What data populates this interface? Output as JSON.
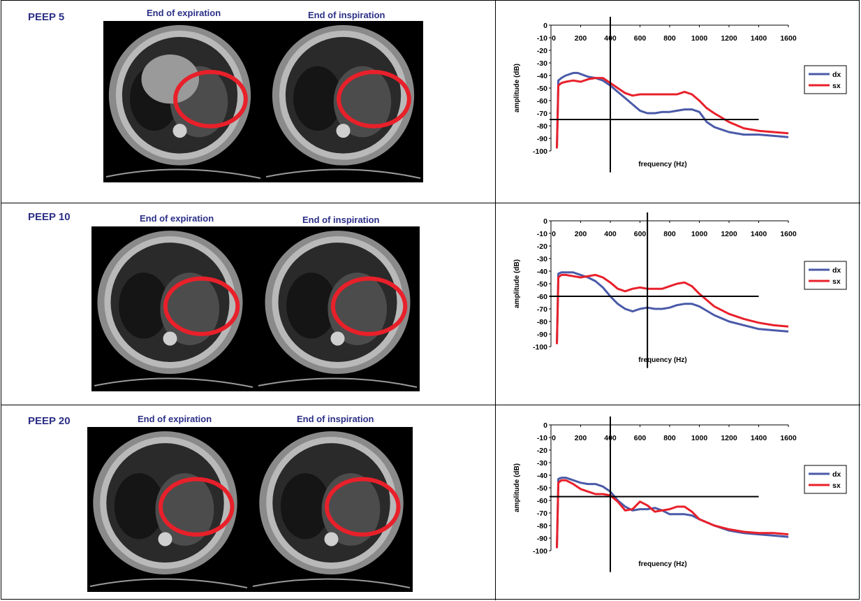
{
  "colors": {
    "dx": "#4a5aa8",
    "sx": "#e8202a",
    "label_blue": "#2b2f86",
    "ellipse": "#e8202a"
  },
  "rows": [
    {
      "peep": "PEEP 5",
      "exp_label": "End of  expiration",
      "insp_label": "End of  inspiration"
    },
    {
      "peep": "PEEP 10",
      "exp_label": "End of  expiration",
      "insp_label": "End of  inspiration"
    },
    {
      "peep": "PEEP 20",
      "exp_label": "End of  expiration",
      "insp_label": "End of  inspiration"
    }
  ],
  "chart_data": [
    {
      "type": "line",
      "xlabel": "frequency (Hz)",
      "ylabel": "amplitude (dB)",
      "xlim": [
        0,
        1600
      ],
      "ylim": [
        -100,
        0
      ],
      "x_ticks": [
        "0",
        "200",
        "400",
        "600",
        "800",
        "1000",
        "1200",
        "1400",
        "1600"
      ],
      "y_ticks": [
        "0",
        "-10",
        "-20",
        "-30",
        "-40",
        "-50",
        "-60",
        "-70",
        "-80",
        "-90",
        "-100"
      ],
      "legend": "right",
      "series": [
        {
          "name": "dx",
          "x": [
            40,
            50,
            70,
            100,
            150,
            180,
            250,
            300,
            350,
            400,
            450,
            500,
            550,
            600,
            650,
            700,
            750,
            800,
            850,
            900,
            950,
            1000,
            1050,
            1100,
            1200,
            1300,
            1400,
            1500,
            1600
          ],
          "y": [
            -98,
            -44,
            -42,
            -40,
            -38,
            -38,
            -41,
            -42,
            -44,
            -48,
            -53,
            -58,
            -63,
            -68,
            -70,
            -70,
            -69,
            -69,
            -68,
            -67,
            -67,
            -69,
            -77,
            -81,
            -85,
            -87,
            -87,
            -88,
            -89
          ]
        },
        {
          "name": "sx",
          "x": [
            40,
            50,
            70,
            100,
            150,
            200,
            250,
            300,
            350,
            400,
            450,
            500,
            550,
            600,
            650,
            700,
            750,
            800,
            850,
            900,
            950,
            1000,
            1050,
            1100,
            1200,
            1300,
            1400,
            1500,
            1600
          ],
          "y": [
            -98,
            -48,
            -46,
            -45,
            -44,
            -45,
            -43,
            -42,
            -42,
            -46,
            -50,
            -54,
            -56,
            -55,
            -55,
            -55,
            -55,
            -55,
            -55,
            -53,
            -55,
            -60,
            -66,
            -70,
            -77,
            -82,
            -84,
            -85,
            -86
          ]
        }
      ],
      "crosshair": {
        "x": 400,
        "y": -75
      }
    },
    {
      "type": "line",
      "xlabel": "frequency (Hz)",
      "ylabel": "amplitude (dB)",
      "xlim": [
        0,
        1600
      ],
      "ylim": [
        -100,
        0
      ],
      "x_ticks": [
        "0",
        "200",
        "400",
        "600",
        "800",
        "1000",
        "1200",
        "1400",
        "1600"
      ],
      "y_ticks": [
        "0",
        "-10",
        "-20",
        "-30",
        "-40",
        "-50",
        "-60",
        "-70",
        "-80",
        "-90",
        "-100"
      ],
      "legend": "right",
      "series": [
        {
          "name": "dx",
          "x": [
            40,
            50,
            70,
            100,
            150,
            200,
            250,
            300,
            350,
            400,
            450,
            500,
            550,
            600,
            650,
            700,
            750,
            800,
            850,
            900,
            950,
            1000,
            1100,
            1200,
            1300,
            1400,
            1500,
            1600
          ],
          "y": [
            -98,
            -42,
            -41,
            -41,
            -41,
            -43,
            -45,
            -48,
            -53,
            -60,
            -66,
            -70,
            -72,
            -70,
            -69,
            -70,
            -70,
            -69,
            -67,
            -66,
            -66,
            -68,
            -75,
            -80,
            -83,
            -86,
            -87,
            -88
          ]
        },
        {
          "name": "sx",
          "x": [
            40,
            50,
            70,
            100,
            150,
            200,
            250,
            300,
            350,
            400,
            450,
            500,
            550,
            600,
            650,
            700,
            750,
            800,
            850,
            900,
            950,
            1000,
            1100,
            1200,
            1300,
            1400,
            1500,
            1600
          ],
          "y": [
            -98,
            -45,
            -43,
            -43,
            -44,
            -45,
            -44,
            -43,
            -45,
            -49,
            -54,
            -56,
            -54,
            -53,
            -54,
            -54,
            -54,
            -52,
            -50,
            -49,
            -52,
            -58,
            -68,
            -74,
            -78,
            -81,
            -83,
            -84
          ]
        }
      ],
      "crosshair": {
        "x": 650,
        "y": -60
      }
    },
    {
      "type": "line",
      "xlabel": "frequency (Hz)",
      "ylabel": "amplitude (dB)",
      "xlim": [
        0,
        1600
      ],
      "ylim": [
        -100,
        0
      ],
      "x_ticks": [
        "0",
        "200",
        "400",
        "600",
        "800",
        "1000",
        "1200",
        "1400",
        "1600"
      ],
      "y_ticks": [
        "0",
        "-10",
        "-20",
        "-30",
        "-40",
        "-50",
        "-60",
        "-70",
        "-80",
        "-90",
        "-100"
      ],
      "legend": "right",
      "series": [
        {
          "name": "dx",
          "x": [
            40,
            50,
            70,
            100,
            150,
            200,
            250,
            300,
            350,
            400,
            450,
            500,
            550,
            600,
            650,
            700,
            750,
            800,
            850,
            900,
            950,
            1000,
            1100,
            1200,
            1300,
            1400,
            1500,
            1600
          ],
          "y": [
            -98,
            -43,
            -42,
            -42,
            -44,
            -46,
            -47,
            -47,
            -49,
            -53,
            -60,
            -65,
            -68,
            -67,
            -67,
            -66,
            -68,
            -71,
            -71,
            -71,
            -72,
            -75,
            -80,
            -84,
            -86,
            -87,
            -88,
            -89
          ]
        },
        {
          "name": "sx",
          "x": [
            40,
            50,
            70,
            100,
            150,
            200,
            250,
            300,
            350,
            400,
            450,
            500,
            550,
            600,
            650,
            700,
            750,
            800,
            850,
            900,
            950,
            1000,
            1100,
            1200,
            1300,
            1400,
            1500,
            1600
          ],
          "y": [
            -98,
            -46,
            -44,
            -44,
            -47,
            -51,
            -53,
            -55,
            -55,
            -56,
            -61,
            -68,
            -67,
            -61,
            -64,
            -69,
            -68,
            -67,
            -65,
            -65,
            -69,
            -75,
            -80,
            -83,
            -85,
            -86,
            -86,
            -87
          ]
        }
      ],
      "crosshair": {
        "x": 400,
        "y": -57
      }
    }
  ]
}
